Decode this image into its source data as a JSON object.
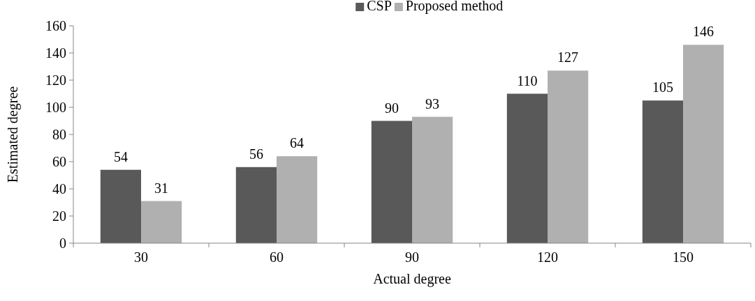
{
  "chart_data": {
    "type": "bar",
    "xlabel": "Actual degree",
    "ylabel": "Estimated degree",
    "categories": [
      "30",
      "60",
      "90",
      "120",
      "150"
    ],
    "series": [
      {
        "name": "CSP",
        "color": "#595959",
        "values": [
          54,
          56,
          90,
          110,
          105
        ]
      },
      {
        "name": "Proposed method",
        "color": "#b0b0b0",
        "values": [
          31,
          64,
          93,
          127,
          146
        ]
      }
    ],
    "ylim": [
      0,
      160
    ],
    "yticks": [
      0,
      20,
      40,
      60,
      80,
      100,
      120,
      140,
      160
    ],
    "data_labels": true,
    "legend": "top",
    "grid": false
  }
}
